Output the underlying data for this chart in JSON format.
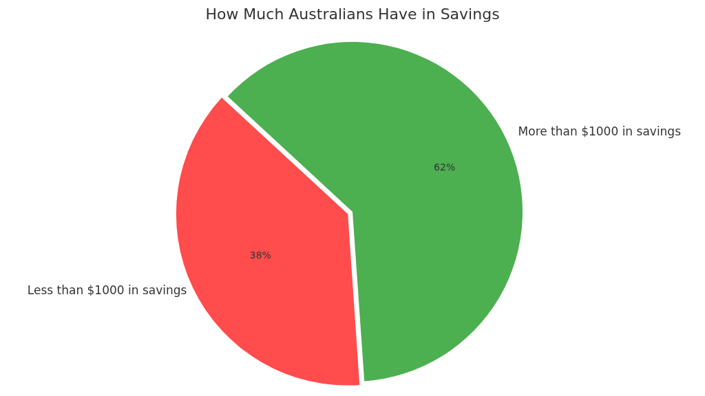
{
  "chart_data": {
    "type": "pie",
    "title": "How Much Australians Have in Savings",
    "categories": [
      "Less than $1000 in savings",
      "More than $1000 in savings"
    ],
    "values": [
      38,
      62
    ],
    "colors": [
      "#ff4c4c",
      "#4caf50"
    ],
    "value_labels": [
      "38%",
      "62%"
    ],
    "legend": false
  }
}
